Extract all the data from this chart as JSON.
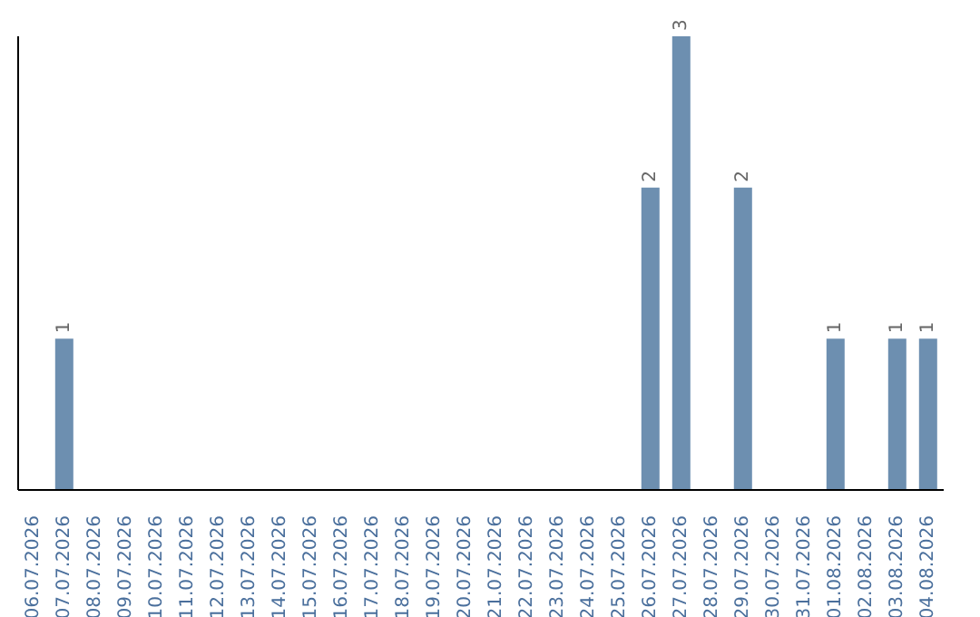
{
  "chart_data": {
    "type": "bar",
    "categories": [
      "06.07.2026",
      "07.07.2026",
      "08.07.2026",
      "09.07.2026",
      "10.07.2026",
      "11.07.2026",
      "12.07.2026",
      "13.07.2026",
      "14.07.2026",
      "15.07.2026",
      "16.07.2026",
      "17.07.2026",
      "18.07.2026",
      "19.07.2026",
      "20.07.2026",
      "21.07.2026",
      "22.07.2026",
      "23.07.2026",
      "24.07.2026",
      "25.07.2026",
      "26.07.2026",
      "27.07.2026",
      "28.07.2026",
      "29.07.2026",
      "30.07.2026",
      "31.07.2026",
      "01.08.2026",
      "02.08.2026",
      "03.08.2026",
      "04.08.2026"
    ],
    "values": [
      0,
      1,
      0,
      0,
      0,
      0,
      0,
      0,
      0,
      0,
      0,
      0,
      0,
      0,
      0,
      0,
      0,
      0,
      0,
      0,
      2,
      3,
      0,
      2,
      0,
      0,
      1,
      0,
      1,
      1
    ],
    "value_labels": [
      null,
      "1",
      null,
      null,
      null,
      null,
      null,
      null,
      null,
      null,
      null,
      null,
      null,
      null,
      null,
      null,
      null,
      null,
      null,
      null,
      "2",
      "3",
      null,
      "2",
      null,
      null,
      "1",
      null,
      "1",
      "1"
    ],
    "color": "#6d8fb0",
    "grid": false,
    "legend": false
  }
}
